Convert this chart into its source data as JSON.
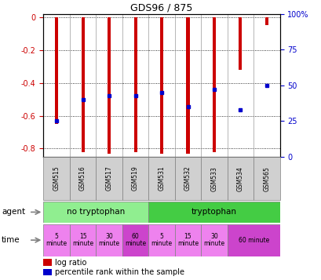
{
  "title": "GDS96 / 875",
  "samples": [
    "GSM515",
    "GSM516",
    "GSM517",
    "GSM519",
    "GSM531",
    "GSM532",
    "GSM533",
    "GSM534",
    "GSM565"
  ],
  "log_ratio": [
    -0.65,
    -0.82,
    -0.83,
    -0.82,
    -0.83,
    -0.83,
    -0.82,
    -0.32,
    -0.05
  ],
  "percentile_rank": [
    25,
    40,
    43,
    43,
    45,
    35,
    47,
    33,
    50
  ],
  "ylim_left": [
    -0.85,
    0.02
  ],
  "ylim_right": [
    0,
    100
  ],
  "y_ticks_left": [
    0,
    -0.2,
    -0.4,
    -0.6,
    -0.8
  ],
  "y_ticks_right": [
    0,
    25,
    50,
    75,
    100
  ],
  "agent_groups": [
    {
      "label": "no tryptophan",
      "start": 0,
      "end": 4,
      "color": "#90ee90"
    },
    {
      "label": "tryptophan",
      "start": 4,
      "end": 9,
      "color": "#44cc44"
    }
  ],
  "time_items": [
    {
      "label": "5\nminute",
      "col": 0,
      "span": 1,
      "color": "#ee82ee"
    },
    {
      "label": "15\nminute",
      "col": 1,
      "span": 1,
      "color": "#ee82ee"
    },
    {
      "label": "30\nminute",
      "col": 2,
      "span": 1,
      "color": "#ee82ee"
    },
    {
      "label": "60\nminute",
      "col": 3,
      "span": 1,
      "color": "#cc44cc"
    },
    {
      "label": "5\nminute",
      "col": 4,
      "span": 1,
      "color": "#ee82ee"
    },
    {
      "label": "15\nminute",
      "col": 5,
      "span": 1,
      "color": "#ee82ee"
    },
    {
      "label": "30\nminute",
      "col": 6,
      "span": 1,
      "color": "#ee82ee"
    },
    {
      "label": "60 minute",
      "col": 7,
      "span": 2,
      "color": "#cc44cc"
    }
  ],
  "bar_color": "#cc0000",
  "dot_color": "#0000cc",
  "label_color_left": "#cc0000",
  "label_color_right": "#0000cc",
  "grid_color": "#000000",
  "cell_bg": "#d0d0d0",
  "bar_width": 0.12
}
